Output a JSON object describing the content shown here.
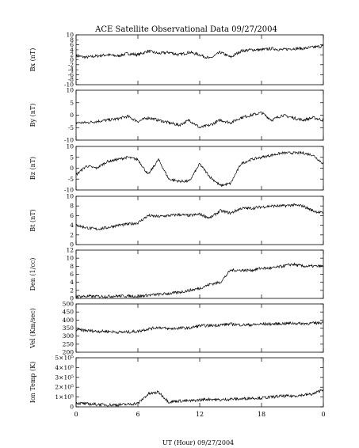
{
  "chart_data": [
    {
      "type": "line",
      "title": "ACE Satellite Observational Data   09/27/2004",
      "ylabel": "Bx (nT)",
      "ylim": [
        -10,
        10
      ],
      "yticks": [
        "10",
        "6",
        "2",
        "-2",
        "-6",
        "-10"
      ],
      "yticks_minor": [
        "8",
        "4",
        "0",
        "-4",
        "-8"
      ],
      "x": [
        0,
        1,
        2,
        3,
        4,
        5,
        6,
        7,
        8,
        9,
        10,
        11,
        12,
        13,
        14,
        15,
        16,
        17,
        18,
        19,
        20,
        21,
        22,
        23,
        24
      ],
      "values": [
        1.5,
        1.0,
        1.5,
        2.0,
        1.5,
        2.5,
        2.0,
        3.5,
        2.5,
        3.0,
        2.0,
        3.0,
        2.0,
        0.5,
        3.0,
        1.0,
        3.5,
        4.0,
        4.0,
        4.5,
        4.0,
        4.5,
        4.5,
        5.0,
        5.5
      ]
    },
    {
      "type": "line",
      "ylabel": "By (nT)",
      "ylim": [
        -10,
        10
      ],
      "yticks": [
        "10",
        "5",
        "0",
        "-5",
        "-10"
      ],
      "x": [
        0,
        1,
        2,
        3,
        4,
        5,
        6,
        7,
        8,
        9,
        10,
        11,
        12,
        13,
        14,
        15,
        16,
        17,
        18,
        19,
        20,
        21,
        22,
        23,
        24
      ],
      "values": [
        -3,
        -3,
        -2.5,
        -2,
        -1.5,
        -0.5,
        -2.5,
        -1,
        -2,
        -3,
        -4,
        -2,
        -5,
        -4,
        -2,
        -3,
        -1,
        0,
        1,
        -2,
        0,
        -1,
        -2,
        -1,
        -2
      ]
    },
    {
      "type": "line",
      "ylabel": "Bz (nT)",
      "ylim": [
        -10,
        10
      ],
      "yticks": [
        "10",
        "5",
        "0",
        "-5",
        "-10"
      ],
      "x": [
        0,
        1,
        2,
        3,
        4,
        5,
        6,
        7,
        8,
        9,
        10,
        11,
        12,
        13,
        14,
        15,
        16,
        17,
        18,
        19,
        20,
        21,
        22,
        23,
        24
      ],
      "values": [
        -3,
        1,
        0,
        3,
        4,
        5,
        4,
        -3,
        4,
        -5,
        -6,
        -6,
        2,
        -4,
        -8,
        -7,
        2,
        4,
        5,
        6,
        7,
        7,
        7,
        6,
        2
      ]
    },
    {
      "type": "line",
      "ylabel": "Bt (nT)",
      "ylim": [
        0,
        10
      ],
      "yticks": [
        "10",
        "8",
        "6",
        "4",
        "2",
        "0"
      ],
      "x": [
        0,
        1,
        2,
        3,
        4,
        5,
        6,
        7,
        8,
        9,
        10,
        11,
        12,
        13,
        14,
        15,
        16,
        17,
        18,
        19,
        20,
        21,
        22,
        23,
        24
      ],
      "values": [
        4,
        3.5,
        3.2,
        3.5,
        4,
        4.2,
        4.5,
        6,
        5.8,
        6,
        6.2,
        6,
        6.3,
        5.5,
        7,
        6.5,
        7.5,
        7.5,
        7.8,
        8,
        8,
        8.2,
        8,
        7,
        6.5
      ]
    },
    {
      "type": "line",
      "ylabel": "Den (1/cc)",
      "ylim": [
        0,
        12
      ],
      "yticks": [
        "12",
        "10",
        "8",
        "6",
        "4",
        "2",
        "0"
      ],
      "x": [
        0,
        1,
        2,
        3,
        4,
        5,
        6,
        7,
        8,
        9,
        10,
        11,
        12,
        13,
        14,
        15,
        16,
        17,
        18,
        19,
        20,
        21,
        22,
        23,
        24
      ],
      "values": [
        0.5,
        0.5,
        0.5,
        0.5,
        0.6,
        0.6,
        0.5,
        0.8,
        1,
        1.2,
        1.5,
        2,
        2.5,
        3.5,
        4,
        7,
        7,
        7,
        7.5,
        7.5,
        8,
        8.5,
        8,
        8,
        8
      ]
    },
    {
      "type": "line",
      "ylabel": "Vel (Km/sec)",
      "ylim": [
        200,
        500
      ],
      "yticks": [
        "500",
        "450",
        "400",
        "350",
        "300",
        "250",
        "200"
      ],
      "x": [
        0,
        1,
        2,
        3,
        4,
        5,
        6,
        7,
        8,
        9,
        10,
        11,
        12,
        13,
        14,
        15,
        16,
        17,
        18,
        19,
        20,
        21,
        22,
        23,
        24
      ],
      "values": [
        340,
        335,
        330,
        330,
        325,
        325,
        330,
        345,
        355,
        345,
        350,
        350,
        365,
        365,
        370,
        375,
        370,
        370,
        375,
        375,
        378,
        380,
        378,
        380,
        385
      ]
    },
    {
      "type": "line",
      "ylabel": "Ion Temp (K)",
      "ylim": [
        0,
        500000
      ],
      "yticks": [
        "5×10⁵",
        "4×10⁵",
        "3×10⁵",
        "2×10⁵",
        "1×10⁵",
        "0"
      ],
      "x": [
        0,
        1,
        2,
        3,
        4,
        5,
        6,
        7,
        8,
        9,
        10,
        11,
        12,
        13,
        14,
        15,
        16,
        17,
        18,
        19,
        20,
        21,
        22,
        23,
        24
      ],
      "values": [
        40000,
        30000,
        25000,
        20000,
        20000,
        25000,
        35000,
        130000,
        150000,
        50000,
        60000,
        60000,
        70000,
        80000,
        70000,
        80000,
        80000,
        90000,
        90000,
        100000,
        110000,
        110000,
        120000,
        130000,
        180000
      ],
      "xlabel": "UT (Hour)   09/27/2004",
      "xticks": [
        "0",
        "6",
        "12",
        "18",
        "0"
      ]
    }
  ]
}
